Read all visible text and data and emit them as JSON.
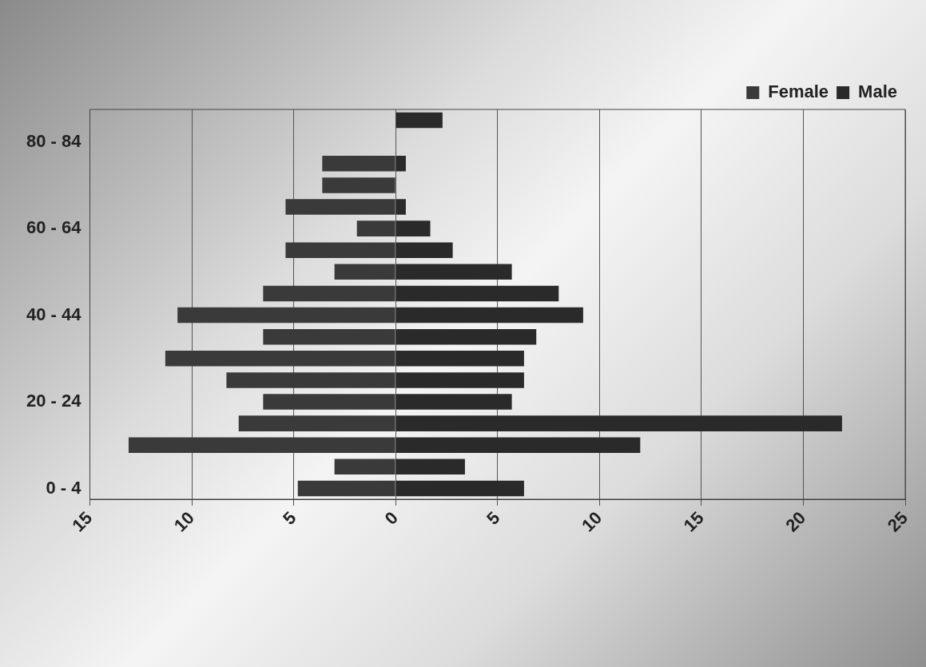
{
  "chart_data": {
    "type": "bar",
    "orientation": "horizontal",
    "stacked": true,
    "categories": [
      null,
      "80 - 84",
      null,
      null,
      null,
      "60 - 64",
      null,
      null,
      null,
      "40 - 44",
      null,
      null,
      null,
      "20 - 24",
      null,
      null,
      null,
      "0 - 4"
    ],
    "series": [
      {
        "name": "Female",
        "color": "#3a3a3a",
        "values": [
          0,
          0,
          -3.6,
          -3.6,
          -5.4,
          -1.9,
          -5.4,
          -3.0,
          -6.5,
          -10.7,
          -6.5,
          -11.3,
          -8.3,
          -6.5,
          -7.7,
          -13.1,
          -3.0,
          -4.8
        ]
      },
      {
        "name": "Male",
        "color": "#2a2a2a",
        "values": [
          2.3,
          0,
          0.5,
          0,
          0.5,
          1.7,
          2.8,
          5.7,
          8.0,
          9.2,
          6.9,
          6.3,
          6.3,
          5.7,
          21.9,
          12.0,
          3.4,
          6.3
        ]
      }
    ],
    "xlim": [
      -15,
      25
    ],
    "xticks": [
      {
        "value": -15,
        "label": "15"
      },
      {
        "value": -10,
        "label": "10"
      },
      {
        "value": -5,
        "label": "5"
      },
      0,
      5,
      10,
      15,
      20,
      25
    ],
    "grid": "x",
    "legend": "top right"
  }
}
